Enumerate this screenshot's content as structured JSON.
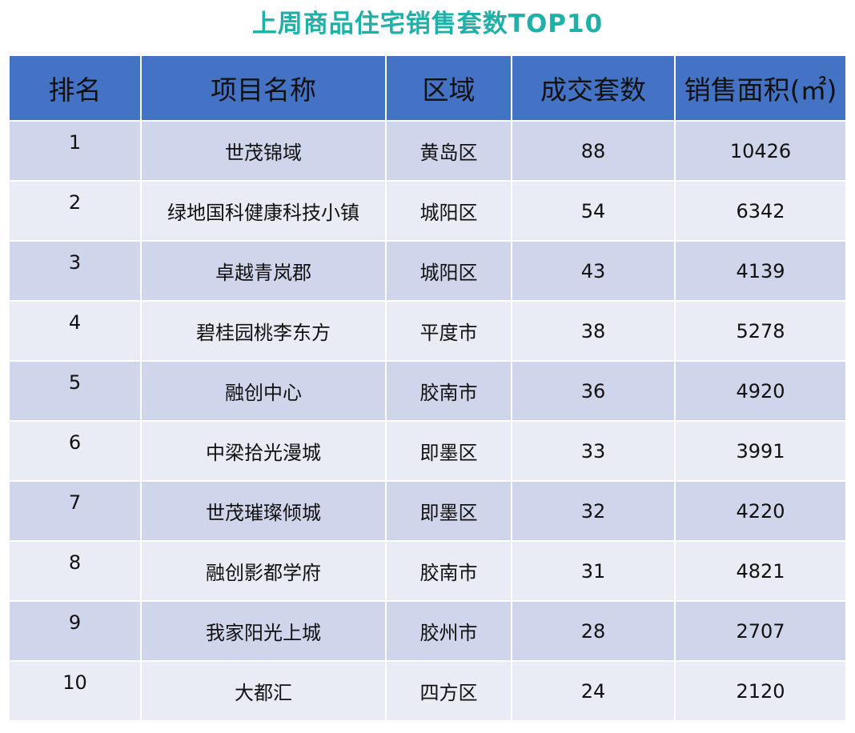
{
  "title": "上周商品住宅销售套数TOP10",
  "colors": {
    "title": "#1fb0a8",
    "header_bg": "#4472c4",
    "row_odd": "#cfd5ea",
    "row_even": "#e9ebf5"
  },
  "headers": [
    "排名",
    "项目名称",
    "区域",
    "成交套数",
    "销售面积(㎡)"
  ],
  "rows": [
    [
      "1",
      "世茂锦域",
      "黄岛区",
      "88",
      "10426"
    ],
    [
      "2",
      "绿地国科健康科技小镇",
      "城阳区",
      "54",
      "6342"
    ],
    [
      "3",
      "卓越青岚郡",
      "城阳区",
      "43",
      "4139"
    ],
    [
      "4",
      "碧桂园桃李东方",
      "平度市",
      "38",
      "5278"
    ],
    [
      "5",
      "融创中心",
      "胶南市",
      "36",
      "4920"
    ],
    [
      "6",
      "中梁拾光漫城",
      "即墨区",
      "33",
      "3991"
    ],
    [
      "7",
      "世茂璀璨倾城",
      "即墨区",
      "32",
      "4220"
    ],
    [
      "8",
      "融创影都学府",
      "胶南市",
      "31",
      "4821"
    ],
    [
      "9",
      "我家阳光上城",
      "胶州市",
      "28",
      "2707"
    ],
    [
      "10",
      "大都汇",
      "四方区",
      "24",
      "2120"
    ]
  ]
}
